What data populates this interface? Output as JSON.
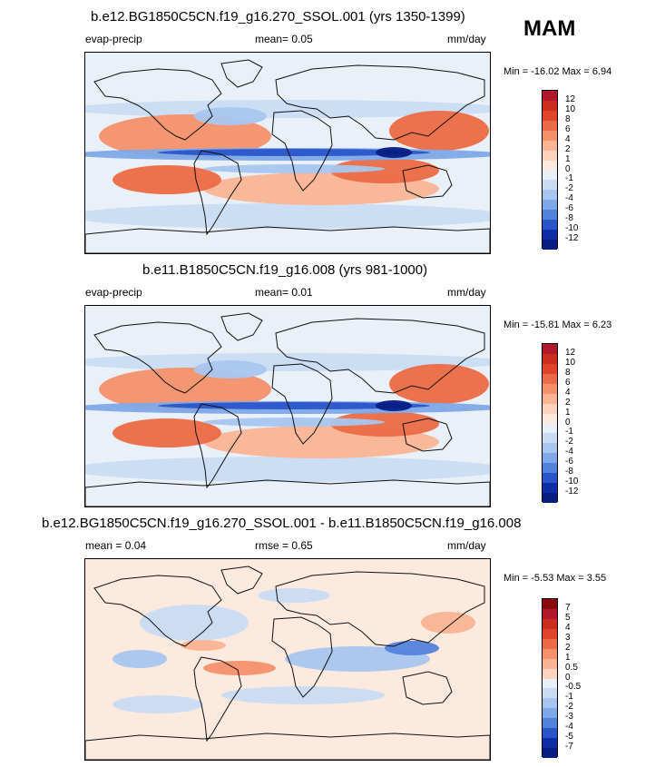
{
  "season": "MAM",
  "panels": [
    {
      "title": "b.e12.BG1850C5CN.f19_g16.270_SSOL.001 (yrs 1350-1399)",
      "left_label": "evap-precip",
      "mean": "mean=  0.05",
      "units": "mm/day",
      "minmax": "Min = -16.02 Max =   6.94",
      "colorbar_labels": [
        "12",
        "10",
        "8",
        "6",
        "4",
        "2",
        "1",
        "0",
        "-1",
        "-2",
        "-4",
        "-6",
        "-8",
        "-10",
        "-12"
      ],
      "colorbar_colors": [
        "#b2182b",
        "#cc2d1f",
        "#e0452a",
        "#ec6a45",
        "#f4906a",
        "#f9b493",
        "#fcd4bd",
        "#fbeadd",
        "#eaf0f7",
        "#c9dcf3",
        "#a8c6ef",
        "#7ea8e8",
        "#5382dc",
        "#2a55c9",
        "#0f2ea6",
        "#071d84"
      ]
    },
    {
      "title": "b.e11.B1850C5CN.f19_g16.008 (yrs 981-1000)",
      "left_label": "evap-precip",
      "mean": "mean=  0.01",
      "units": "mm/day",
      "minmax": "Min = -15.81 Max =   6.23",
      "colorbar_labels": [
        "12",
        "10",
        "8",
        "6",
        "4",
        "2",
        "1",
        "0",
        "-1",
        "-2",
        "-4",
        "-6",
        "-8",
        "-10",
        "-12"
      ],
      "colorbar_colors": [
        "#b2182b",
        "#cc2d1f",
        "#e0452a",
        "#ec6a45",
        "#f4906a",
        "#f9b493",
        "#fcd4bd",
        "#fbeadd",
        "#eaf0f7",
        "#c9dcf3",
        "#a8c6ef",
        "#7ea8e8",
        "#5382dc",
        "#2a55c9",
        "#0f2ea6",
        "#071d84"
      ]
    },
    {
      "title": "b.e12.BG1850C5CN.f19_g16.270_SSOL.001 - b.e11.B1850C5CN.f19_g16.008",
      "left_label": "mean =   0.04",
      "mean": "rmse =   0.65",
      "units": "mm/day",
      "minmax": "Min =  -5.53 Max =   3.55",
      "colorbar_labels": [
        "7",
        "5",
        "4",
        "3",
        "2",
        "1",
        "0.5",
        "0",
        "-0.5",
        "-1",
        "-2",
        "-3",
        "-4",
        "-5",
        "-7"
      ],
      "colorbar_colors": [
        "#8b0a0a",
        "#b2182b",
        "#cc2d1f",
        "#e0452a",
        "#ec6a45",
        "#f4906a",
        "#f9b493",
        "#fcd4bd",
        "#eaf0f7",
        "#c9dcf3",
        "#a8c6ef",
        "#7ea8e8",
        "#5382dc",
        "#2a55c9",
        "#0f2ea6",
        "#071d84"
      ]
    }
  ]
}
